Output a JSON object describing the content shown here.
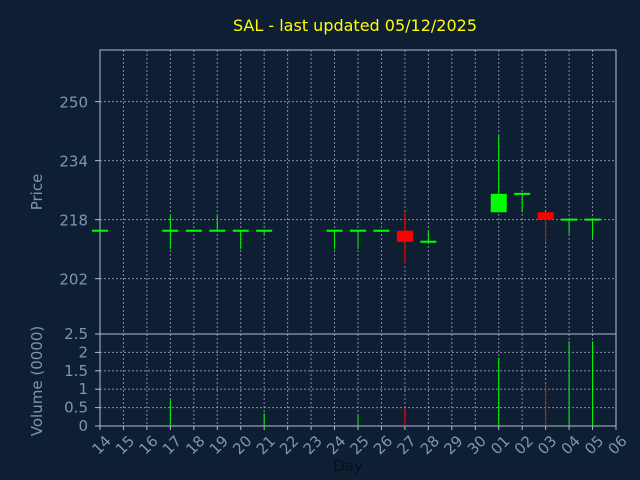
{
  "chart_data": {
    "type": "candlestick",
    "title": "SAL - last updated 05/12/2025",
    "xlabel": "Day",
    "ylabel": "Price",
    "volume_label": "Volume (0000)",
    "colors": {
      "background": "#0f1f33",
      "title": "#ffff00",
      "axis_text": "#7a96b4",
      "grid": "#b0bccc",
      "up": "#00ff00",
      "down": "#ff0000"
    },
    "x_ticks": [
      "14",
      "15",
      "16",
      "17",
      "18",
      "19",
      "20",
      "21",
      "22",
      "23",
      "24",
      "25",
      "26",
      "27",
      "28",
      "29",
      "30",
      "01",
      "02",
      "03",
      "04",
      "05",
      "06"
    ],
    "price_axis": {
      "ticks": [
        202,
        218,
        234,
        250
      ],
      "ylim": [
        187,
        264
      ]
    },
    "volume_axis": {
      "ticks": [
        "0",
        "0.5",
        "1",
        "1.5",
        "2",
        "2.5"
      ],
      "ylim": [
        0,
        2.5
      ]
    },
    "candles": [
      {
        "day": "14",
        "open": 215,
        "close": 215,
        "high": 215,
        "low": 215,
        "volume": 0.0,
        "dir": "up"
      },
      {
        "day": "17",
        "open": 215,
        "close": 215,
        "high": 219,
        "low": 210,
        "volume": 0.7,
        "dir": "up"
      },
      {
        "day": "18",
        "open": 215,
        "close": 215,
        "high": 215,
        "low": 215,
        "volume": 0.0,
        "dir": "up"
      },
      {
        "day": "19",
        "open": 215,
        "close": 215,
        "high": 219,
        "low": 215,
        "volume": 0.0,
        "dir": "up"
      },
      {
        "day": "20",
        "open": 215,
        "close": 215,
        "high": 215,
        "low": 210,
        "volume": 0.0,
        "dir": "up"
      },
      {
        "day": "21",
        "open": 215,
        "close": 215,
        "high": 215,
        "low": 214,
        "volume": 0.35,
        "dir": "up"
      },
      {
        "day": "24",
        "open": 215,
        "close": 215,
        "high": 215,
        "low": 210,
        "volume": 0.0,
        "dir": "up"
      },
      {
        "day": "25",
        "open": 215,
        "close": 215,
        "high": 215,
        "low": 210,
        "volume": 0.3,
        "dir": "up"
      },
      {
        "day": "26",
        "open": 215,
        "close": 215,
        "high": 215,
        "low": 215,
        "volume": 0.0,
        "dir": "up"
      },
      {
        "day": "27",
        "open": 215,
        "close": 212,
        "high": 220,
        "low": 206,
        "volume": 0.5,
        "dir": "down"
      },
      {
        "day": "28",
        "open": 212,
        "close": 212,
        "high": 215,
        "low": 212,
        "volume": 0.0,
        "dir": "up"
      },
      {
        "day": "01",
        "open": 220,
        "close": 225,
        "high": 241,
        "low": 220,
        "volume": 1.85,
        "dir": "up"
      },
      {
        "day": "02",
        "open": 225,
        "close": 225,
        "high": 225,
        "low": 220,
        "volume": 0.0,
        "dir": "up"
      },
      {
        "day": "03",
        "open": 220,
        "close": 218,
        "high": 220,
        "low": 212,
        "volume": 1.15,
        "dir": "down"
      },
      {
        "day": "04",
        "open": 218,
        "close": 218,
        "high": 218,
        "low": 214,
        "volume": 2.3,
        "dir": "up"
      },
      {
        "day": "05",
        "open": 218,
        "close": 218,
        "high": 218,
        "low": 213,
        "volume": 2.3,
        "dir": "up"
      }
    ]
  }
}
